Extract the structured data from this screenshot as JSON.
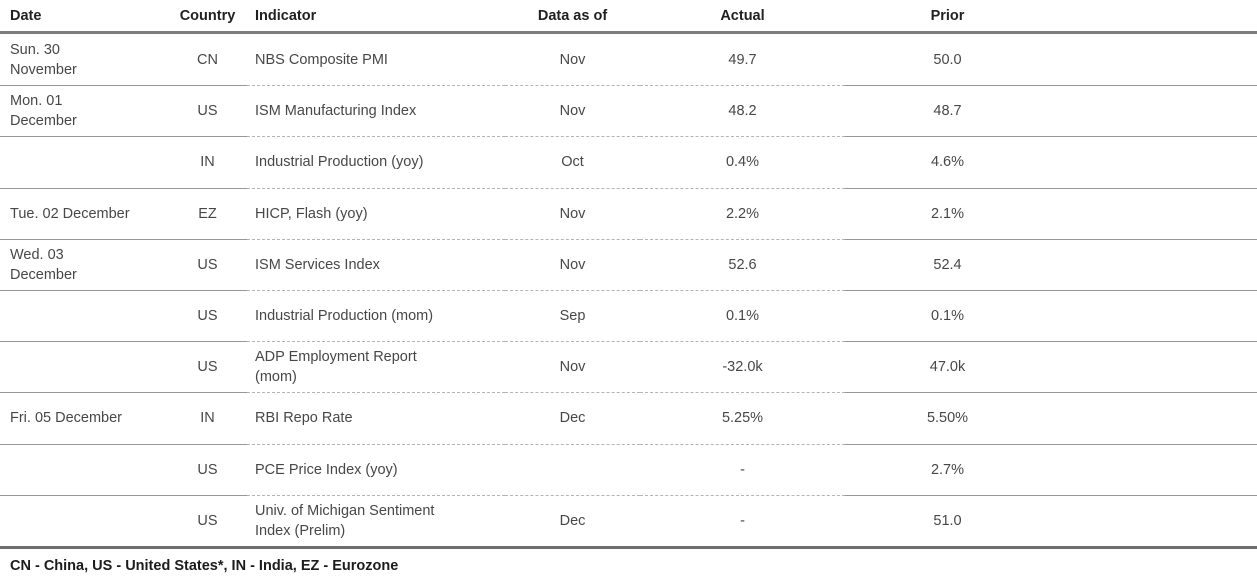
{
  "table": {
    "columns": [
      "Date",
      "Country",
      "Indicator",
      "Data as of",
      "Actual",
      "Prior"
    ],
    "rows": [
      {
        "date": "Sun. 30\nNovember",
        "country": "CN",
        "indicator": "NBS Composite PMI",
        "data_as_of": "Nov",
        "actual": "49.7",
        "prior": "50.0"
      },
      {
        "date": "Mon. 01\nDecember",
        "country": "US",
        "indicator": "ISM Manufacturing Index",
        "data_as_of": "Nov",
        "actual": "48.2",
        "prior": "48.7"
      },
      {
        "date": "",
        "country": "IN",
        "indicator": "Industrial Production (yoy)",
        "data_as_of": "Oct",
        "actual": "0.4%",
        "prior": "4.6%"
      },
      {
        "date": "Tue. 02 December",
        "country": "EZ",
        "indicator": "HICP, Flash (yoy)",
        "data_as_of": "Nov",
        "actual": "2.2%",
        "prior": "2.1%"
      },
      {
        "date": "Wed. 03\nDecember",
        "country": "US",
        "indicator": "ISM Services Index",
        "data_as_of": "Nov",
        "actual": "52.6",
        "prior": "52.4"
      },
      {
        "date": "",
        "country": "US",
        "indicator": "Industrial Production (mom)",
        "data_as_of": "Sep",
        "actual": "0.1%",
        "prior": "0.1%"
      },
      {
        "date": "",
        "country": "US",
        "indicator": "ADP Employment Report\n(mom)",
        "data_as_of": "Nov",
        "actual": "-32.0k",
        "prior": "47.0k"
      },
      {
        "date": "Fri. 05 December",
        "country": "IN",
        "indicator": "RBI Repo Rate",
        "data_as_of": "Dec",
        "actual": "5.25%",
        "prior": "5.50%"
      },
      {
        "date": "",
        "country": "US",
        "indicator": "PCE Price Index (yoy)",
        "data_as_of": "",
        "actual": "-",
        "prior": "2.7%"
      },
      {
        "date": "",
        "country": "US",
        "indicator": "Univ. of Michigan Sentiment\nIndex (Prelim)",
        "data_as_of": "Dec",
        "actual": "-",
        "prior": "51.0"
      }
    ]
  },
  "footer": {
    "legend": "CN - China, US - United States*, IN - India, EZ - Eurozone"
  },
  "colors": {
    "header_rule": "#7c7c7c",
    "footer_rule": "#6f6f6f",
    "row_separator_solid": "#979797",
    "row_separator_dashed": "#b4b4b4",
    "header_text": "#212121",
    "body_text": "#474747"
  }
}
